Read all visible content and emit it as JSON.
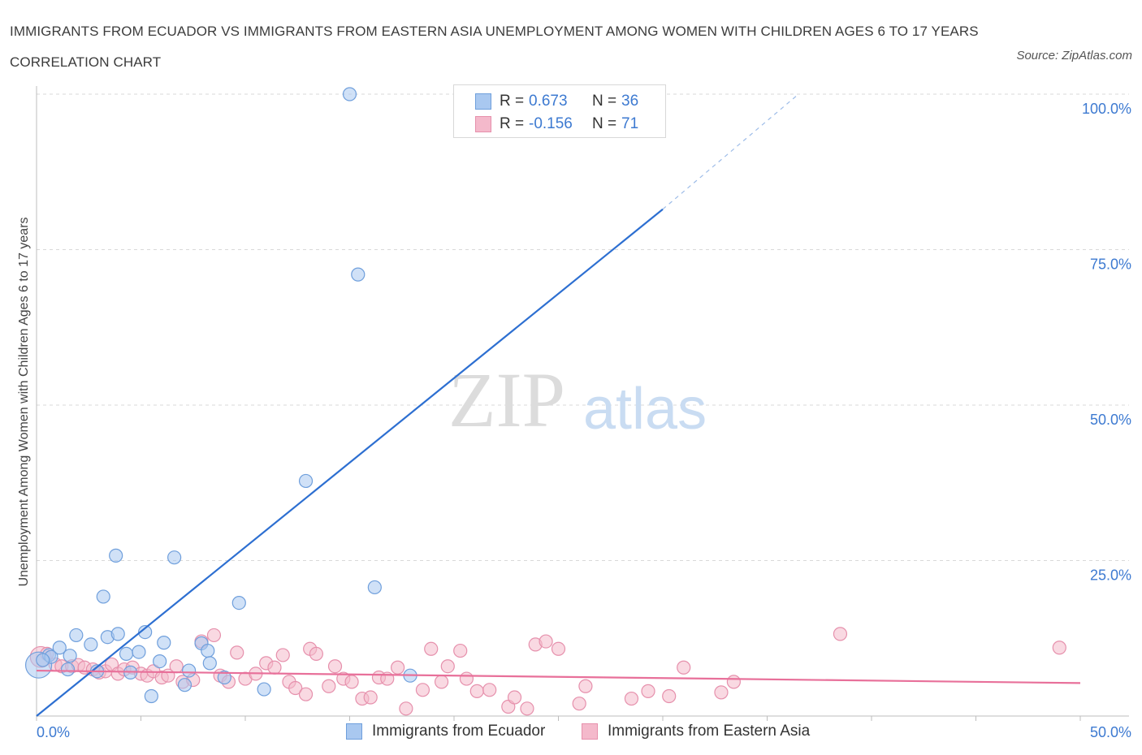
{
  "title": "IMMIGRANTS FROM ECUADOR VS IMMIGRANTS FROM EASTERN ASIA UNEMPLOYMENT AMONG WOMEN WITH CHILDREN AGES 6 TO 17 YEARS CORRELATION CHART",
  "source": "Source: ZipAtlas.com",
  "watermark": {
    "zip": "ZIP",
    "atlas": "atlas"
  },
  "colors": {
    "blue_fill": "#a9c8f0",
    "blue_stroke": "#6f9fdc",
    "blue_line": "#2d6fd1",
    "pink_fill": "#f4b9cb",
    "pink_stroke": "#e690ac",
    "pink_line": "#e8709a",
    "grid": "#d9d9d9",
    "tick_label": "#3d7ad1"
  },
  "legend_top": {
    "rows": [
      {
        "r_label": "R =",
        "r_value": "0.673",
        "n_label": "N =",
        "n_value": "36",
        "series": "blue"
      },
      {
        "r_label": "R =",
        "r_value": "-0.156",
        "n_label": "N =",
        "n_value": "71",
        "series": "pink"
      }
    ]
  },
  "legend_bottom": [
    "Immigrants from Ecuador",
    "Immigrants from Eastern Asia"
  ],
  "chart_data": {
    "type": "scatter",
    "title": "IMMIGRANTS FROM ECUADOR VS IMMIGRANTS FROM EASTERN ASIA UNEMPLOYMENT AMONG WOMEN WITH CHILDREN AGES 6 TO 17 YEARS CORRELATION CHART",
    "ylabel": "Unemployment Among Women with Children Ages 6 to 17 years",
    "xlabel": "",
    "xlim": [
      0,
      50
    ],
    "ylim": [
      0,
      100
    ],
    "x_tick_labels": [
      "0.0%",
      "50.0%"
    ],
    "y_tick_labels": [
      "25.0%",
      "50.0%",
      "75.0%",
      "100.0%"
    ],
    "y_ticks": [
      25,
      50,
      75,
      100
    ],
    "grid": true,
    "legend": "bottom",
    "series": [
      {
        "name": "Immigrants from Ecuador",
        "color": "blue",
        "r": 0.673,
        "n": 36,
        "trend": {
          "x0": 0,
          "y0": 0,
          "x1": 30,
          "y1": 81.5,
          "dashed_to_x": 36.5,
          "dashed_to_y": 100
        },
        "points": [
          [
            0.1,
            8.2,
            2.0
          ],
          [
            0.6,
            9.8,
            1.0
          ],
          [
            0.7,
            9.5,
            1.0
          ],
          [
            1.1,
            11.0,
            1.0
          ],
          [
            1.5,
            7.5,
            1.0
          ],
          [
            1.6,
            9.7,
            1.0
          ],
          [
            1.9,
            13.0,
            1.0
          ],
          [
            2.6,
            11.5,
            1.0
          ],
          [
            2.9,
            7.2,
            1.0
          ],
          [
            3.2,
            19.2,
            1.0
          ],
          [
            3.4,
            12.7,
            1.0
          ],
          [
            3.8,
            25.8,
            1.0
          ],
          [
            3.9,
            13.2,
            1.0
          ],
          [
            4.3,
            10.0,
            1.0
          ],
          [
            4.5,
            7.0,
            1.0
          ],
          [
            4.9,
            10.3,
            1.0
          ],
          [
            5.2,
            13.5,
            1.0
          ],
          [
            5.5,
            3.2,
            1.0
          ],
          [
            5.9,
            8.8,
            1.0
          ],
          [
            6.1,
            11.8,
            1.0
          ],
          [
            6.6,
            25.5,
            1.0
          ],
          [
            7.1,
            5.0,
            1.0
          ],
          [
            7.3,
            7.3,
            1.0
          ],
          [
            7.9,
            11.7,
            1.0
          ],
          [
            8.2,
            10.5,
            1.0
          ],
          [
            8.3,
            8.5,
            1.0
          ],
          [
            9.0,
            6.2,
            1.0
          ],
          [
            9.7,
            18.2,
            1.0
          ],
          [
            10.9,
            4.3,
            1.0
          ],
          [
            12.9,
            37.8,
            1.0
          ],
          [
            15.0,
            100.0,
            1.0
          ],
          [
            15.4,
            71.0,
            1.0
          ],
          [
            16.2,
            20.7,
            1.0
          ],
          [
            17.9,
            6.5,
            1.0
          ],
          [
            26.6,
            100.0,
            1.0
          ],
          [
            0.3,
            9.0,
            1.0
          ]
        ]
      },
      {
        "name": "Immigrants from Eastern Asia",
        "color": "pink",
        "r": -0.156,
        "n": 71,
        "trend": {
          "x0": 0,
          "y0": 7.3,
          "x1": 50,
          "y1": 5.3
        },
        "points": [
          [
            0.2,
            9.5,
            1.6
          ],
          [
            0.5,
            10.0,
            1.0
          ],
          [
            0.9,
            8.3,
            1.0
          ],
          [
            1.2,
            8.0,
            1.0
          ],
          [
            1.7,
            8.0,
            1.0
          ],
          [
            2.0,
            8.2,
            1.0
          ],
          [
            2.3,
            7.8,
            1.0
          ],
          [
            2.7,
            7.5,
            1.0
          ],
          [
            3.0,
            7.0,
            1.0
          ],
          [
            3.3,
            7.2,
            1.0
          ],
          [
            3.6,
            8.3,
            1.0
          ],
          [
            3.9,
            6.8,
            1.0
          ],
          [
            4.2,
            7.5,
            1.0
          ],
          [
            4.6,
            7.8,
            1.0
          ],
          [
            5.0,
            6.8,
            1.0
          ],
          [
            5.3,
            6.5,
            1.0
          ],
          [
            5.6,
            7.2,
            1.0
          ],
          [
            6.0,
            6.2,
            1.0
          ],
          [
            6.3,
            6.5,
            1.0
          ],
          [
            6.7,
            8.0,
            1.0
          ],
          [
            7.0,
            5.5,
            1.0
          ],
          [
            7.5,
            5.8,
            1.0
          ],
          [
            7.9,
            12.0,
            1.0
          ],
          [
            8.5,
            13.0,
            1.0
          ],
          [
            8.8,
            6.5,
            1.0
          ],
          [
            9.2,
            5.5,
            1.0
          ],
          [
            9.6,
            10.2,
            1.0
          ],
          [
            10.0,
            6.0,
            1.0
          ],
          [
            10.5,
            6.8,
            1.0
          ],
          [
            11.0,
            8.5,
            1.0
          ],
          [
            11.4,
            7.8,
            1.0
          ],
          [
            11.8,
            9.8,
            1.0
          ],
          [
            12.1,
            5.5,
            1.0
          ],
          [
            12.4,
            4.5,
            1.0
          ],
          [
            12.9,
            3.5,
            1.0
          ],
          [
            13.1,
            10.8,
            1.0
          ],
          [
            13.4,
            10.0,
            1.0
          ],
          [
            14.0,
            4.8,
            1.0
          ],
          [
            14.3,
            8.0,
            1.0
          ],
          [
            14.7,
            6.0,
            1.0
          ],
          [
            15.1,
            5.5,
            1.0
          ],
          [
            15.6,
            2.8,
            1.0
          ],
          [
            16.0,
            3.0,
            1.0
          ],
          [
            16.4,
            6.2,
            1.0
          ],
          [
            16.8,
            6.0,
            1.0
          ],
          [
            17.3,
            7.8,
            1.0
          ],
          [
            17.7,
            1.2,
            1.0
          ],
          [
            18.5,
            4.2,
            1.0
          ],
          [
            18.9,
            10.8,
            1.0
          ],
          [
            19.4,
            5.5,
            1.0
          ],
          [
            19.7,
            8.0,
            1.0
          ],
          [
            20.3,
            10.5,
            1.0
          ],
          [
            20.6,
            6.0,
            1.0
          ],
          [
            21.1,
            4.0,
            1.0
          ],
          [
            21.7,
            4.2,
            1.0
          ],
          [
            22.6,
            1.5,
            1.0
          ],
          [
            22.9,
            3.0,
            1.0
          ],
          [
            23.5,
            1.2,
            1.0
          ],
          [
            23.9,
            11.5,
            1.0
          ],
          [
            24.4,
            12.0,
            1.0
          ],
          [
            25.0,
            10.8,
            1.0
          ],
          [
            26.0,
            2.0,
            1.0
          ],
          [
            26.3,
            4.8,
            1.0
          ],
          [
            28.5,
            2.8,
            1.0
          ],
          [
            29.3,
            4.0,
            1.0
          ],
          [
            30.3,
            3.2,
            1.0
          ],
          [
            31.0,
            7.8,
            1.0
          ],
          [
            32.8,
            3.8,
            1.0
          ],
          [
            33.4,
            5.5,
            1.0
          ],
          [
            38.5,
            13.2,
            1.0
          ],
          [
            49.0,
            11.0,
            1.0
          ]
        ]
      }
    ]
  }
}
